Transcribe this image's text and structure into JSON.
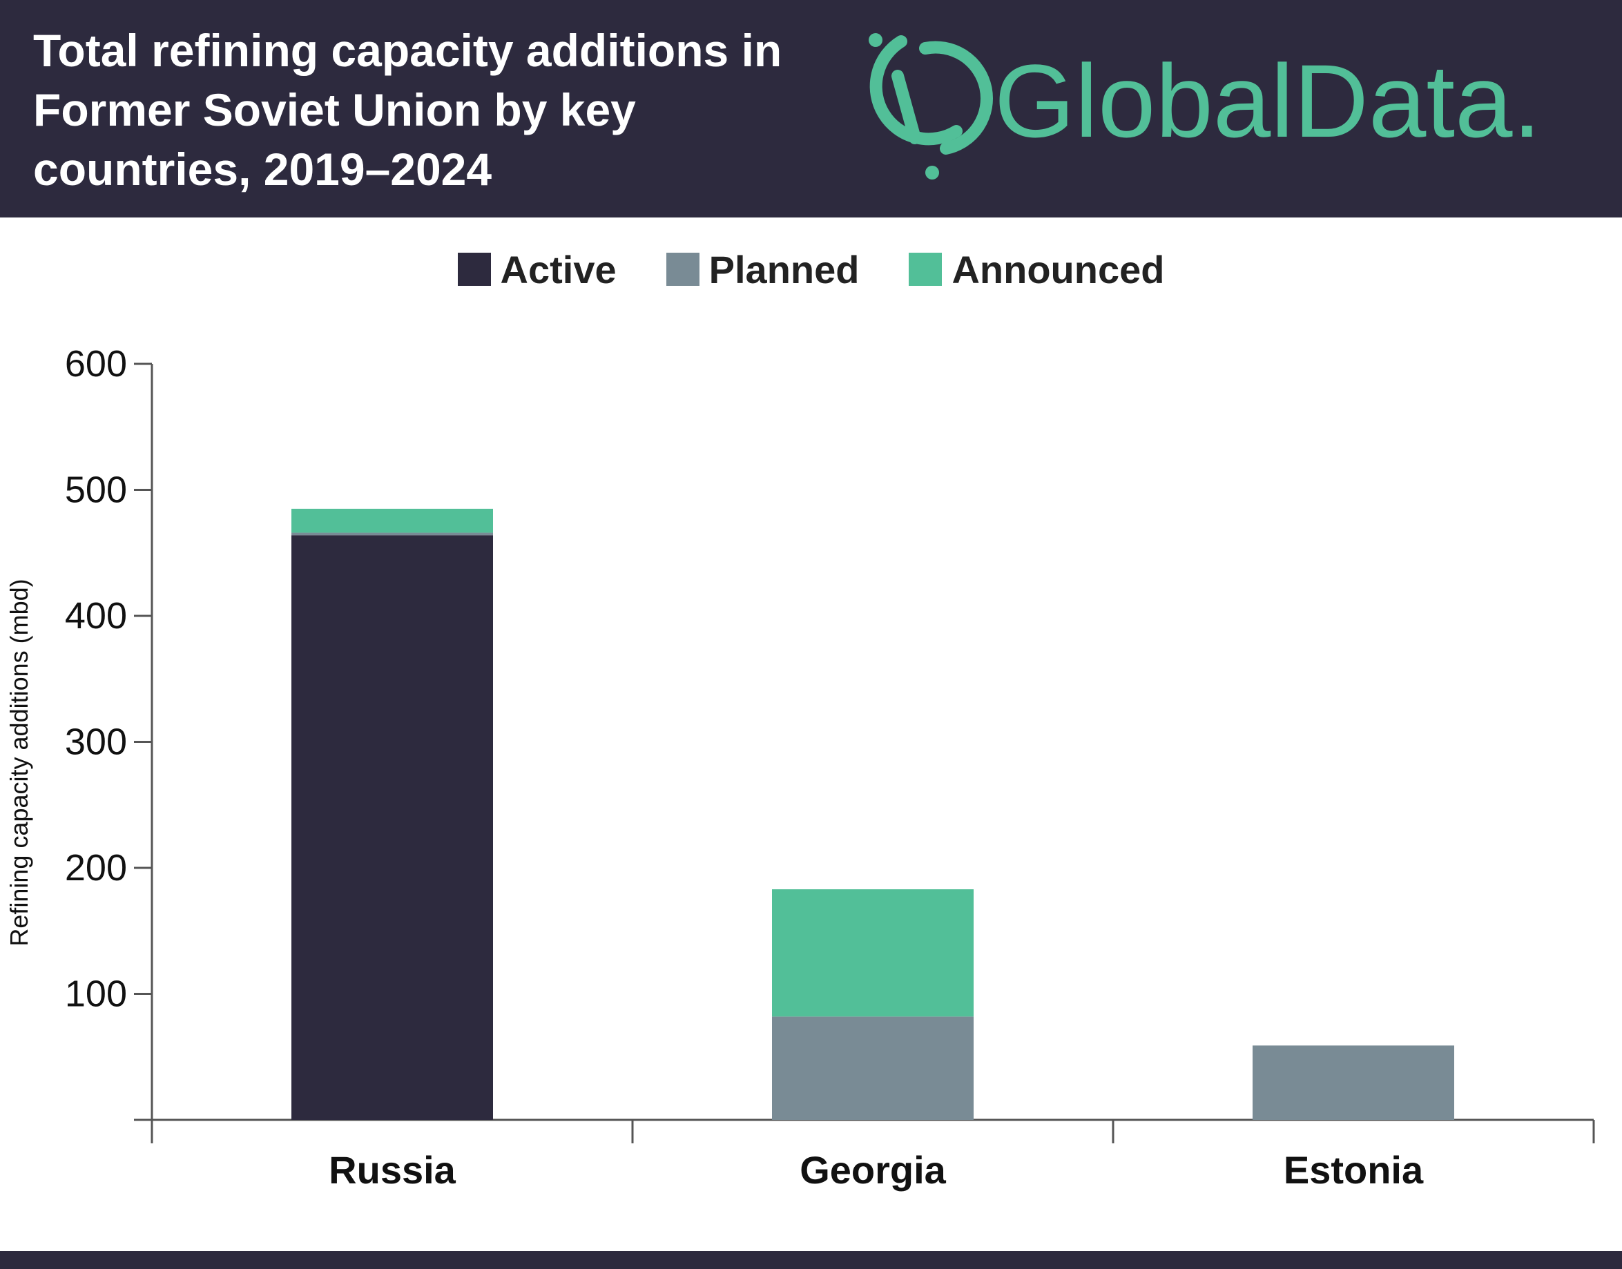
{
  "header": {
    "title": "Total refining capacity additions in Former Soviet Union by key countries, 2019–2024",
    "logo_text": "GlobalData.",
    "background": "#2d2a3e",
    "logo_color": "#52bf98"
  },
  "legend": [
    {
      "label": "Active",
      "color": "#2d2a3e"
    },
    {
      "label": "Planned",
      "color": "#798b95"
    },
    {
      "label": "Announced",
      "color": "#52bf98"
    }
  ],
  "chart_data": {
    "type": "bar",
    "stacked": true,
    "title": "Total refining capacity additions in Former Soviet Union by key countries, 2019–2024",
    "xlabel": "",
    "ylabel": "Refining capacity additions (mbd)",
    "ylim": [
      0,
      600
    ],
    "yticks": [
      100,
      200,
      300,
      400,
      500,
      600
    ],
    "categories": [
      "Russia",
      "Georgia",
      "Estonia"
    ],
    "series": [
      {
        "name": "Active",
        "color": "#2d2a3e",
        "values": [
          464,
          0,
          0
        ]
      },
      {
        "name": "Planned",
        "color": "#798b95",
        "values": [
          2,
          82,
          59
        ]
      },
      {
        "name": "Announced",
        "color": "#52bf98",
        "values": [
          19,
          101,
          0
        ]
      }
    ],
    "legend_position": "top-center",
    "grid": false
  }
}
